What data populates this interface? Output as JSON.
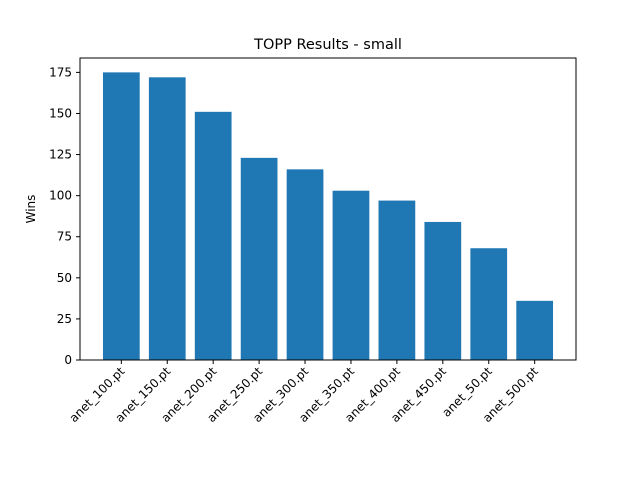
{
  "chart_data": {
    "type": "bar",
    "title": "TOPP Results - small",
    "xlabel": "",
    "ylabel": "Wins",
    "categories": [
      "anet_100.pt",
      "anet_150.pt",
      "anet_200.pt",
      "anet_250.pt",
      "anet_300.pt",
      "anet_350.pt",
      "anet_400.pt",
      "anet_450.pt",
      "anet_50.pt",
      "anet_500.pt"
    ],
    "values": [
      175,
      172,
      151,
      123,
      116,
      103,
      97,
      84,
      68,
      36
    ],
    "ylim": [
      0,
      183.75
    ],
    "yticks": [
      0,
      25,
      50,
      75,
      100,
      125,
      150,
      175
    ],
    "bar_color": "#1f77b4",
    "grid": false,
    "legend": "none"
  }
}
